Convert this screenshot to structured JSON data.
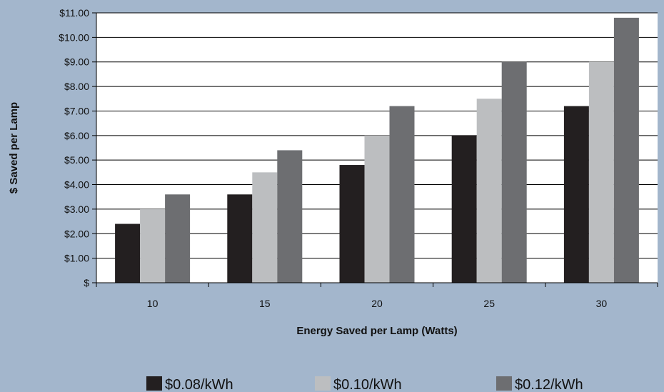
{
  "chart_data": {
    "type": "bar",
    "title": "",
    "xlabel": "Energy Saved per Lamp (Watts)",
    "ylabel": "$ Saved per Lamp",
    "categories": [
      "10",
      "15",
      "20",
      "25",
      "30"
    ],
    "ylim": [
      0,
      11
    ],
    "yticks": [
      0,
      1,
      2,
      3,
      4,
      5,
      6,
      7,
      8,
      9,
      10,
      11
    ],
    "ytick_labels": [
      "$",
      "$1.00",
      "$2.00",
      "$3.00",
      "$4.00",
      "$5.00",
      "$6.00",
      "$7.00",
      "$8.00",
      "$9.00",
      "$10.00",
      "$11.00"
    ],
    "grid": true,
    "legend_position": "bottom",
    "series": [
      {
        "name": "$0.08/kWh",
        "color": "#231f20",
        "values": [
          2.4,
          3.6,
          4.8,
          6.0,
          7.2
        ]
      },
      {
        "name": "$0.10/kWh",
        "color": "#bcbec0",
        "values": [
          3.0,
          4.5,
          6.0,
          7.5,
          9.0
        ]
      },
      {
        "name": "$0.12/kWh",
        "color": "#6d6e71",
        "values": [
          3.6,
          5.4,
          7.2,
          9.0,
          10.8
        ]
      }
    ],
    "background_color": "#a3b6cc",
    "plot_background_color": "#ffffff"
  }
}
